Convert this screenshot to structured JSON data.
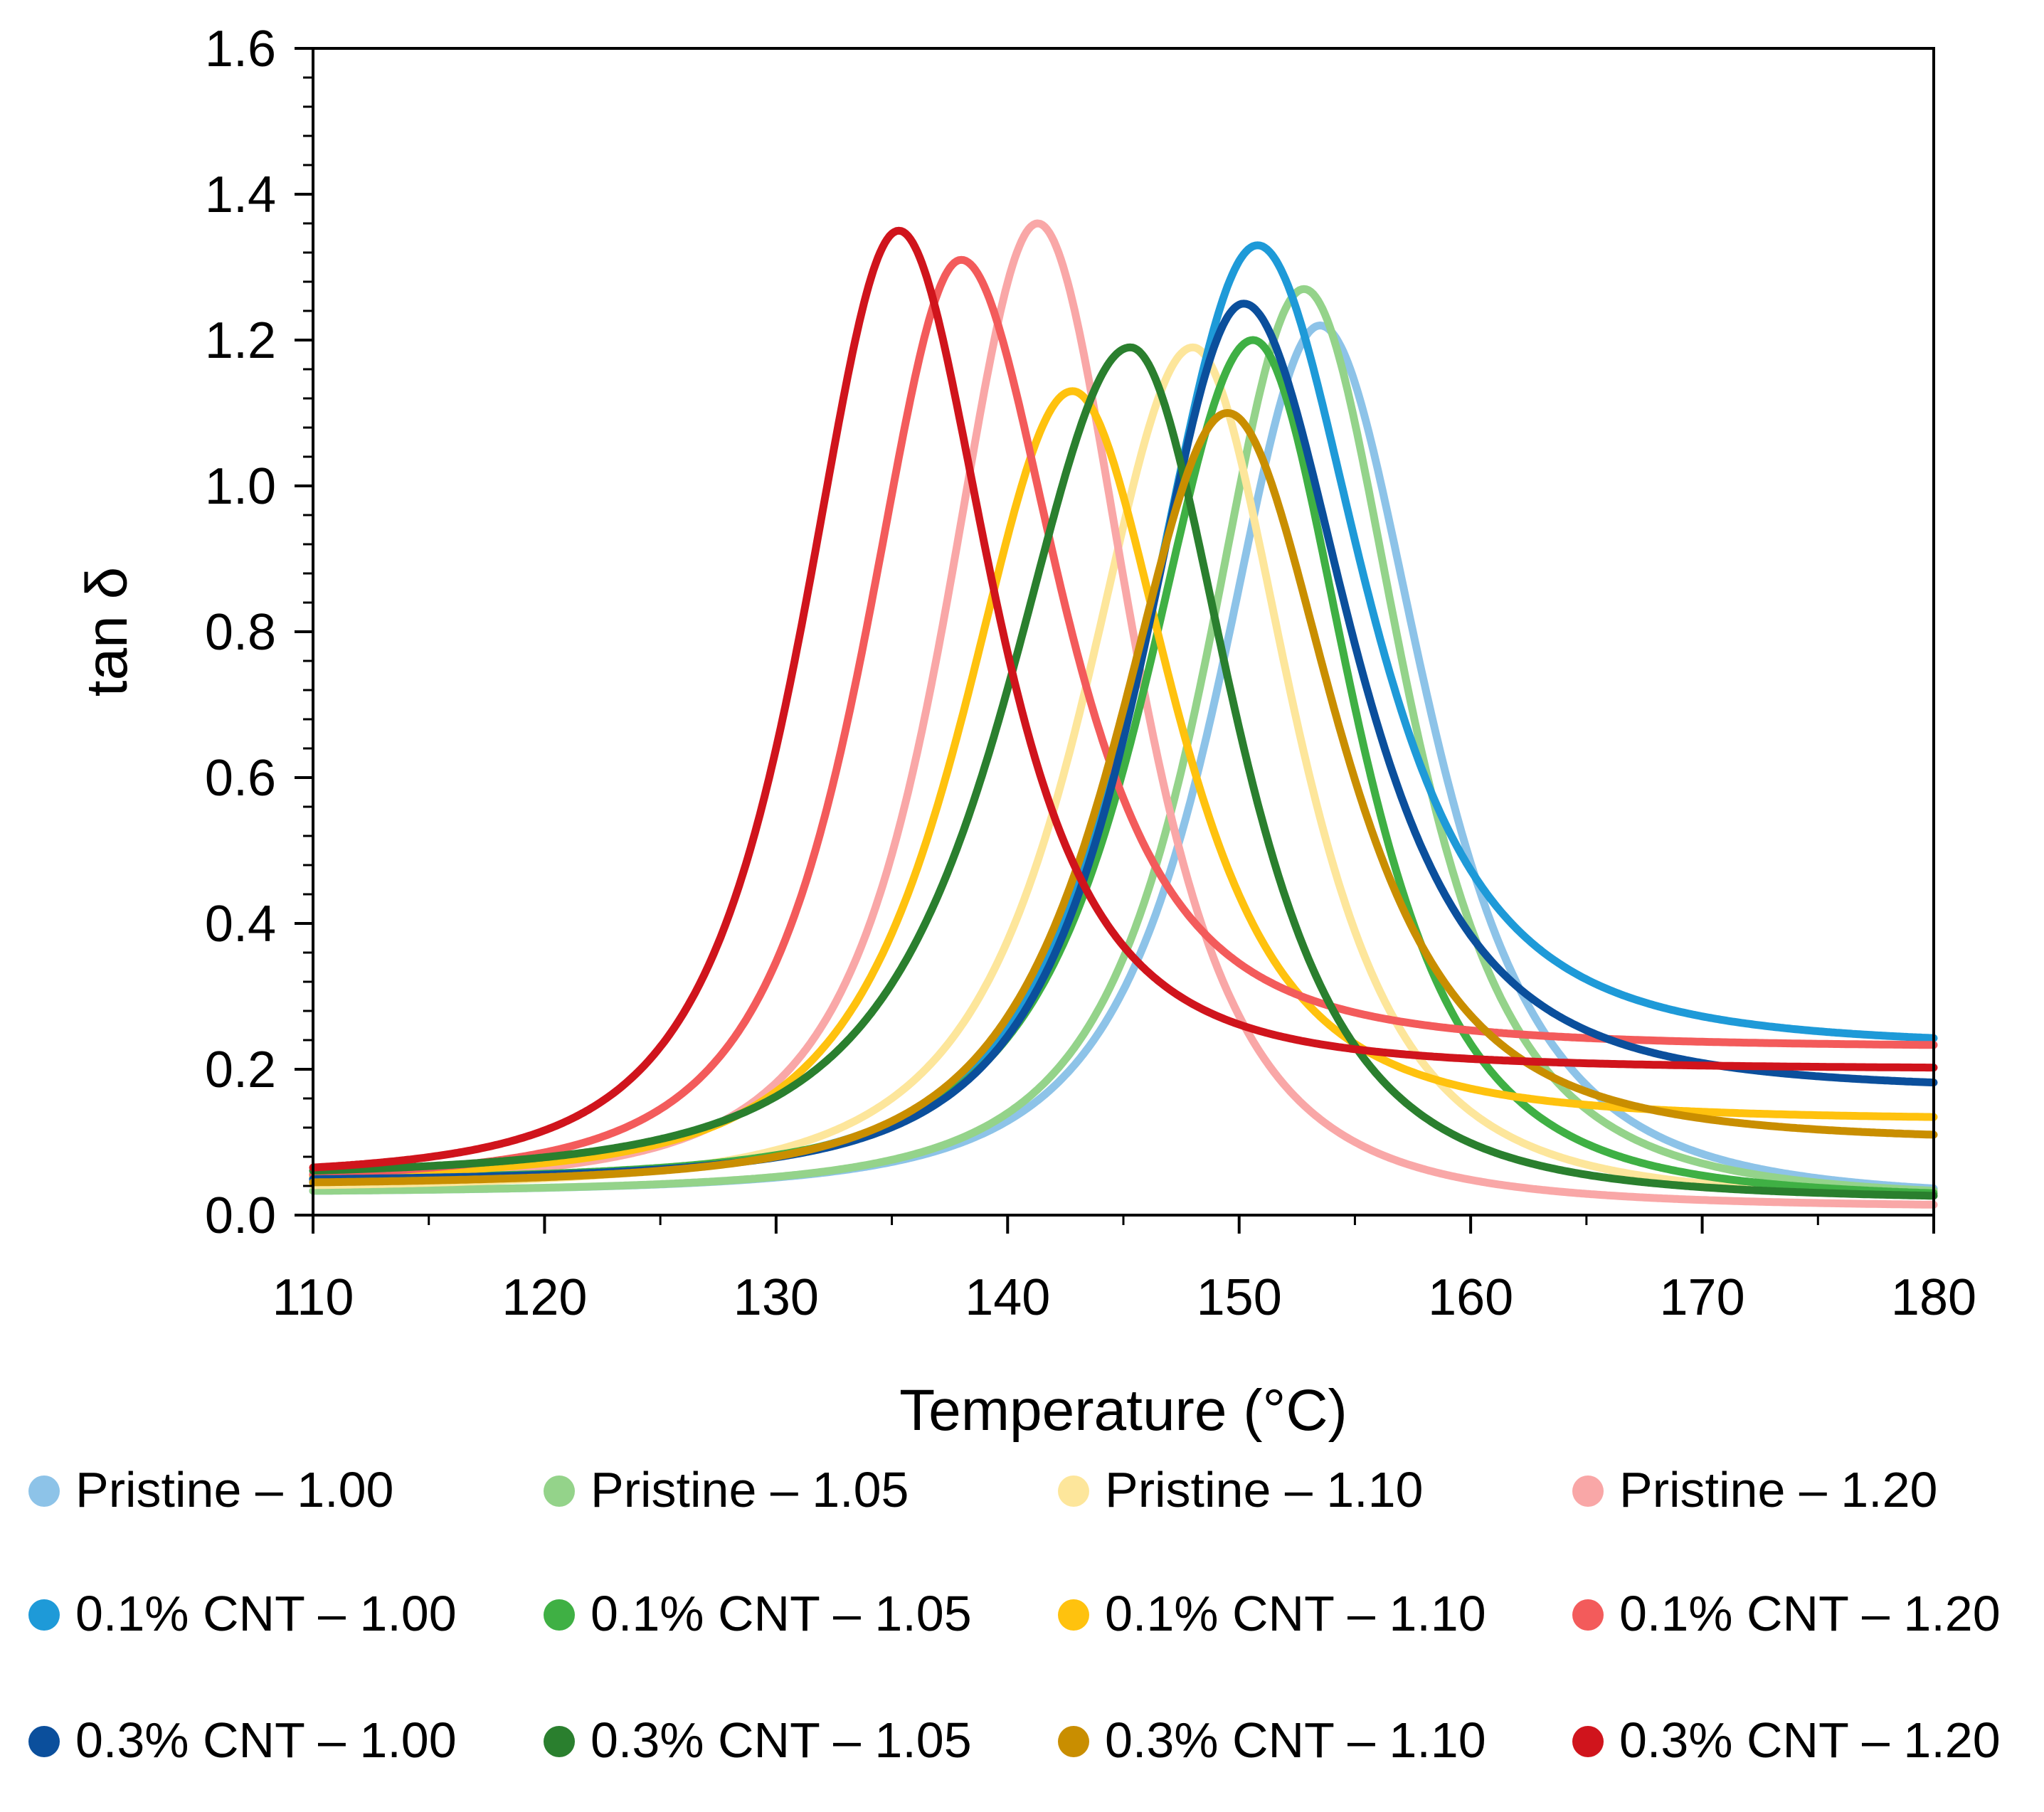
{
  "chart_data": {
    "type": "scatter",
    "title": "",
    "xlabel": "Temperature (°C)",
    "ylabel": "tan δ",
    "xlim": [
      110,
      180
    ],
    "ylim": [
      0,
      1.6
    ],
    "xticks": [
      "110",
      "120",
      "130",
      "140",
      "150",
      "160",
      "170",
      "180"
    ],
    "yticks": [
      "0.0",
      "0.2",
      "0.4",
      "0.6",
      "0.8",
      "1.0",
      "1.2",
      "1.4",
      "1.6"
    ],
    "grid": false,
    "legend_position": "bottom",
    "series": [
      {
        "name": "Pristine – 1.00",
        "color": "#8dc3e8",
        "peak_x": 153.5,
        "peak_y": 1.22,
        "base": 0.03,
        "tail": 0.02,
        "width_left": 7.0,
        "width_right": 7.2
      },
      {
        "name": "Pristine – 1.05",
        "color": "#94d38a",
        "peak_x": 152.8,
        "peak_y": 1.27,
        "base": 0.03,
        "tail": 0.02,
        "width_left": 6.8,
        "width_right": 6.8
      },
      {
        "name": "Pristine – 1.10",
        "color": "#fde69b",
        "peak_x": 148.0,
        "peak_y": 1.19,
        "base": 0.035,
        "tail": 0.02,
        "width_left": 7.5,
        "width_right": 6.8
      },
      {
        "name": "Pristine – 1.20",
        "color": "#f9a7a7",
        "peak_x": 141.3,
        "peak_y": 1.36,
        "base": 0.04,
        "tail": 0.01,
        "width_left": 6.5,
        "width_right": 6.5
      },
      {
        "name": "0.1% CNT – 1.00",
        "color": "#1e9ad8",
        "peak_x": 150.8,
        "peak_y": 1.33,
        "base": 0.04,
        "tail": 0.23,
        "width_left": 7.5,
        "width_right": 7.5
      },
      {
        "name": "0.1% CNT – 1.05",
        "color": "#3fb044",
        "peak_x": 150.6,
        "peak_y": 1.2,
        "base": 0.045,
        "tail": 0.02,
        "width_left": 7.5,
        "width_right": 6.8
      },
      {
        "name": "0.1% CNT – 1.10",
        "color": "#ffc20e",
        "peak_x": 142.8,
        "peak_y": 1.13,
        "base": 0.045,
        "tail": 0.13,
        "width_left": 7.5,
        "width_right": 7.0
      },
      {
        "name": "0.1% CNT – 1.20",
        "color": "#f35b5b",
        "peak_x": 138.0,
        "peak_y": 1.31,
        "base": 0.045,
        "tail": 0.23,
        "width_left": 6.5,
        "width_right": 7.0
      },
      {
        "name": "0.3% CNT – 1.00",
        "color": "#0b4f9c",
        "peak_x": 150.2,
        "peak_y": 1.25,
        "base": 0.045,
        "tail": 0.17,
        "width_left": 7.0,
        "width_right": 7.5
      },
      {
        "name": "0.3% CNT – 1.05",
        "color": "#2a7f2e",
        "peak_x": 145.3,
        "peak_y": 1.19,
        "base": 0.05,
        "tail": 0.02,
        "width_left": 8.5,
        "width_right": 7.0
      },
      {
        "name": "0.3% CNT – 1.10",
        "color": "#c98e00",
        "peak_x": 149.5,
        "peak_y": 1.1,
        "base": 0.04,
        "tail": 0.1,
        "width_left": 7.5,
        "width_right": 7.5
      },
      {
        "name": "0.3% CNT – 1.20",
        "color": "#d0141c",
        "peak_x": 135.3,
        "peak_y": 1.35,
        "base": 0.05,
        "tail": 0.2,
        "width_left": 6.5,
        "width_right": 6.5
      }
    ]
  }
}
